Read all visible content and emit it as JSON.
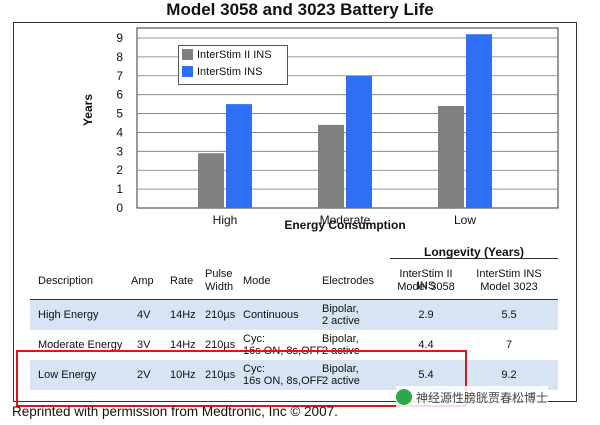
{
  "title": "Model 3058 and 3023 Battery Life",
  "chart_data": {
    "type": "bar",
    "categories": [
      "High",
      "Moderate",
      "Low"
    ],
    "series": [
      {
        "name": "InterStim II INS",
        "values": [
          2.9,
          4.4,
          5.4
        ],
        "color": "#808080"
      },
      {
        "name": "InterStim INS",
        "values": [
          5.5,
          7.0,
          9.2
        ],
        "color": "#2f6ef6"
      }
    ],
    "xlabel": "Energy Consumption",
    "ylabel": "Years",
    "ylim": [
      0,
      9
    ],
    "yticks": [
      "0",
      "1",
      "2",
      "3",
      "4",
      "5",
      "6",
      "7",
      "8",
      "9"
    ],
    "grid": true,
    "legend": "top-left"
  },
  "table": {
    "group_header": "Longevity (Years)",
    "headers": {
      "description": "Description",
      "amp": "Amp",
      "rate": "Rate",
      "pulse1": "Pulse",
      "pulse2": "Width",
      "mode": "Mode",
      "electrodes": "Electrodes",
      "col3058_1": "InterStim II INS",
      "col3058_2": "Model 3058",
      "col3023_1": "InterStim  INS",
      "col3023_2": "Model 3023"
    },
    "rows": [
      {
        "description": "High Energy",
        "amp": "4V",
        "rate": "14Hz",
        "pulse": "210µs",
        "mode1": "Continuous",
        "mode2": "",
        "elec1": "Bipolar,",
        "elec2": "2 active",
        "v3058": "2.9",
        "v3023": "5.5"
      },
      {
        "description": "Moderate Energy",
        "amp": "3V",
        "rate": "14Hz",
        "pulse": "210µs",
        "mode1": "Cyc:",
        "mode2": "16s ON, 8s,OFF",
        "elec1": "Bipolar,",
        "elec2": "2 active",
        "v3058": "4.4",
        "v3023": "7"
      },
      {
        "description": "Low Energy",
        "amp": "2V",
        "rate": "10Hz",
        "pulse": "210µs",
        "mode1": "Cyc:",
        "mode2": "16s ON, 8s,OFF",
        "elec1": "Bipolar,",
        "elec2": "2 active",
        "v3058": "5.4",
        "v3023": "9.2"
      }
    ]
  },
  "footer": "Reprinted with permission from Medtronic, Inc © 2007.",
  "watermark": "神经源性膀胱贾春松博士"
}
